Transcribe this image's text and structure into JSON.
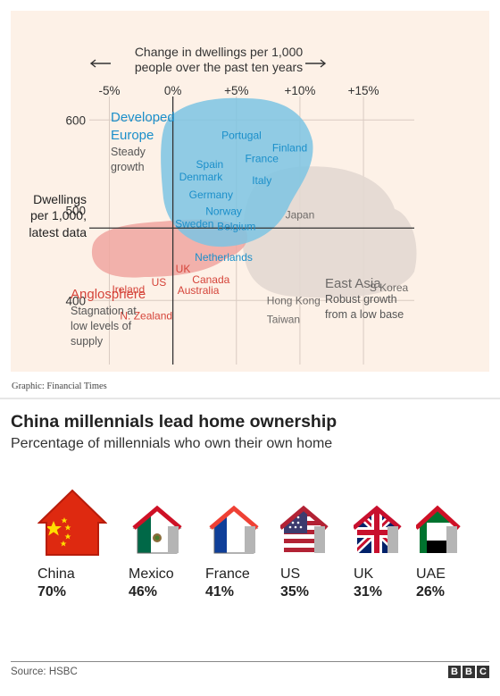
{
  "ft_chart": {
    "top_axis_label": [
      "Change in dwellings per 1,000",
      "people over the past ten years"
    ],
    "left_axis_label": [
      "Dwellings",
      "per 1,000,",
      "latest data"
    ],
    "credit": "Graphic: Financial Times",
    "groups": [
      {
        "name": "Developed Europe",
        "lines": [
          "Developed",
          "Europe"
        ],
        "note": [
          "Steady",
          "growth"
        ],
        "color": "#1b8fca"
      },
      {
        "name": "Anglosphere",
        "lines": [
          "Anglosphere"
        ],
        "note": [
          "Stagnation at",
          "low levels of",
          "supply"
        ],
        "color": "#d5443a"
      },
      {
        "name": "East Asia",
        "lines": [
          "East Asia"
        ],
        "note": [
          "Robust growth",
          "from a low base"
        ],
        "color": "#6d6a68"
      }
    ],
    "colors": {
      "background": "#fdf1e7",
      "europe": "#7cc4e3",
      "anglo": "#f0a6a0",
      "asia": "#e3d8d2",
      "grid": "#d9cbc2",
      "axis": "#333333"
    }
  },
  "chart_data": {
    "type": "scatter",
    "xlabel": "Change in dwellings per 1,000 people over the past ten years",
    "ylabel": "Dwellings per 1,000, latest data",
    "xlim": [
      -7,
      19
    ],
    "ylim": [
      325,
      630
    ],
    "x_ticks": [
      -5,
      0,
      5,
      10,
      15
    ],
    "x_tick_labels": [
      "-5%",
      "0%",
      "+5%",
      "+10%",
      "+15%"
    ],
    "y_ticks": [
      400,
      500,
      600
    ],
    "y_tick_labels": [
      "400",
      "500",
      "600"
    ],
    "grid": true,
    "points": [
      {
        "label": "Portugal",
        "x": 5.4,
        "y": 583,
        "group": "Developed Europe"
      },
      {
        "label": "Finland",
        "x": 9.2,
        "y": 569,
        "group": "Developed Europe"
      },
      {
        "label": "France",
        "x": 7.0,
        "y": 557,
        "group": "Developed Europe"
      },
      {
        "label": "Spain",
        "x": 2.9,
        "y": 551,
        "group": "Developed Europe"
      },
      {
        "label": "Denmark",
        "x": 2.2,
        "y": 537,
        "group": "Developed Europe"
      },
      {
        "label": "Italy",
        "x": 7.0,
        "y": 533,
        "group": "Developed Europe"
      },
      {
        "label": "Germany",
        "x": 3.0,
        "y": 517,
        "group": "Developed Europe"
      },
      {
        "label": "Norway",
        "x": 4.0,
        "y": 499,
        "group": "Developed Europe"
      },
      {
        "label": "Sweden",
        "x": 1.7,
        "y": 485,
        "group": "Developed Europe"
      },
      {
        "label": "Belgium",
        "x": 5.0,
        "y": 482,
        "group": "Developed Europe"
      },
      {
        "label": "Japan",
        "x": 10.0,
        "y": 495,
        "group": "East Asia"
      },
      {
        "label": "Netherlands",
        "x": 4.0,
        "y": 448,
        "group": "Developed Europe"
      },
      {
        "label": "UK",
        "x": 0.8,
        "y": 435,
        "group": "Anglosphere"
      },
      {
        "label": "Canada",
        "x": 3.0,
        "y": 423,
        "group": "Anglosphere"
      },
      {
        "label": "US",
        "x": -1.1,
        "y": 420,
        "group": "Anglosphere"
      },
      {
        "label": "Australia",
        "x": 2.0,
        "y": 411,
        "group": "Anglosphere"
      },
      {
        "label": "Ireland",
        "x": -3.5,
        "y": 412,
        "group": "Anglosphere"
      },
      {
        "label": "S Korea",
        "x": 17.0,
        "y": 414,
        "group": "East Asia"
      },
      {
        "label": "Hong Kong",
        "x": 9.5,
        "y": 400,
        "group": "East Asia"
      },
      {
        "label": "N. Zealand",
        "x": -2.1,
        "y": 383,
        "group": "Anglosphere"
      },
      {
        "label": "Taiwan",
        "x": 8.7,
        "y": 379,
        "group": "East Asia"
      }
    ]
  },
  "bbc_chart": {
    "title": "China millennials lead home ownership",
    "subtitle": "Percentage of millennials who own their own home",
    "source": "Source: HSBC",
    "logo": [
      "B",
      "B",
      "C"
    ]
  },
  "bbc_chart_data": {
    "type": "bar",
    "categories": [
      "China",
      "Mexico",
      "France",
      "US",
      "UK",
      "UAE"
    ],
    "values": [
      70,
      46,
      41,
      35,
      31,
      26
    ],
    "value_labels": [
      "70%",
      "46%",
      "41%",
      "35%",
      "31%",
      "26%"
    ]
  }
}
